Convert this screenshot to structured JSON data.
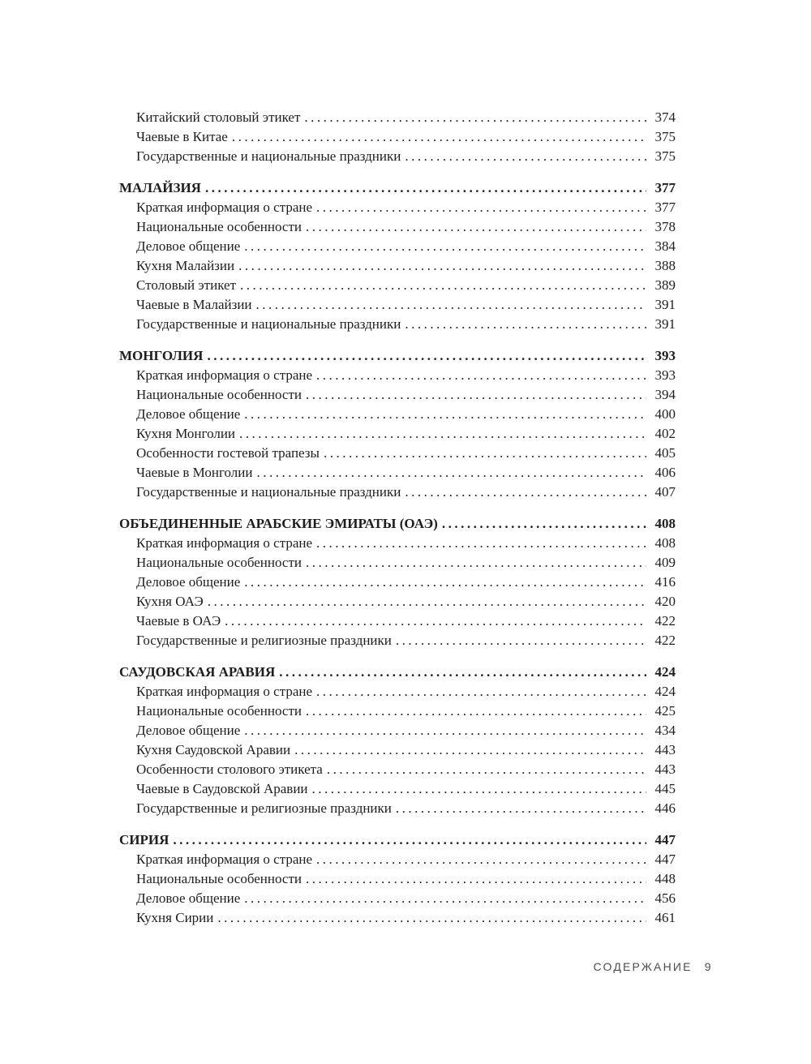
{
  "colors": {
    "background": "#ffffff",
    "text": "#1e1e1e",
    "footer_text": "#4d4d4d"
  },
  "footer": {
    "label": "СОДЕРЖАНИЕ",
    "page_number": "9"
  },
  "toc": {
    "rows": [
      {
        "type": "entry",
        "label": "Китайский столовый этикет",
        "page": "374"
      },
      {
        "type": "entry",
        "label": "Чаевые в Китае",
        "page": "375"
      },
      {
        "type": "entry",
        "label": "Государственные и национальные праздники",
        "page": "375"
      },
      {
        "type": "chapter",
        "label": "МАЛАЙЗИЯ",
        "page": "377"
      },
      {
        "type": "entry",
        "label": "Краткая информация о стране",
        "page": "377"
      },
      {
        "type": "entry",
        "label": "Национальные особенности",
        "page": "378"
      },
      {
        "type": "entry",
        "label": "Деловое общение",
        "page": "384"
      },
      {
        "type": "entry",
        "label": "Кухня Малайзии",
        "page": "388"
      },
      {
        "type": "entry",
        "label": "Столовый этикет",
        "page": "389"
      },
      {
        "type": "entry",
        "label": "Чаевые в Малайзии",
        "page": "391"
      },
      {
        "type": "entry",
        "label": "Государственные и национальные праздники",
        "page": "391"
      },
      {
        "type": "chapter",
        "label": "МОНГОЛИЯ",
        "page": "393"
      },
      {
        "type": "entry",
        "label": "Краткая информация о стране",
        "page": "393"
      },
      {
        "type": "entry",
        "label": "Национальные особенности",
        "page": "394"
      },
      {
        "type": "entry",
        "label": "Деловое общение",
        "page": "400"
      },
      {
        "type": "entry",
        "label": "Кухня Монголии",
        "page": "402"
      },
      {
        "type": "entry",
        "label": "Особенности гостевой трапезы",
        "page": "405"
      },
      {
        "type": "entry",
        "label": "Чаевые в Монголии",
        "page": "406"
      },
      {
        "type": "entry",
        "label": "Государственные и национальные праздники",
        "page": "407"
      },
      {
        "type": "chapter",
        "label": "ОБЪЕДИНЕННЫЕ АРАБСКИЕ ЭМИРАТЫ (ОАЭ)",
        "page": "408"
      },
      {
        "type": "entry",
        "label": "Краткая информация о стране",
        "page": "408"
      },
      {
        "type": "entry",
        "label": "Национальные особенности",
        "page": "409"
      },
      {
        "type": "entry",
        "label": "Деловое общение",
        "page": "416"
      },
      {
        "type": "entry",
        "label": "Кухня ОАЭ",
        "page": "420"
      },
      {
        "type": "entry",
        "label": "Чаевые в ОАЭ",
        "page": "422"
      },
      {
        "type": "entry",
        "label": "Государственные и религиозные праздники",
        "page": "422"
      },
      {
        "type": "chapter",
        "label": "САУДОВСКАЯ АРАВИЯ",
        "page": "424"
      },
      {
        "type": "entry",
        "label": "Краткая информация о стране",
        "page": "424"
      },
      {
        "type": "entry",
        "label": "Национальные особенности",
        "page": "425"
      },
      {
        "type": "entry",
        "label": "Деловое общение",
        "page": "434"
      },
      {
        "type": "entry",
        "label": "Кухня Саудовской Аравии",
        "page": "443"
      },
      {
        "type": "entry",
        "label": "Особенности столового этикета",
        "page": "443"
      },
      {
        "type": "entry",
        "label": "Чаевые в Саудовской Аравии",
        "page": "445"
      },
      {
        "type": "entry",
        "label": "Государственные и религиозные праздники",
        "page": "446"
      },
      {
        "type": "chapter",
        "label": "СИРИЯ",
        "page": "447"
      },
      {
        "type": "entry",
        "label": "Краткая информация о стране",
        "page": "447"
      },
      {
        "type": "entry",
        "label": "Национальные особенности",
        "page": "448"
      },
      {
        "type": "entry",
        "label": "Деловое общение",
        "page": "456"
      },
      {
        "type": "entry",
        "label": "Кухня Сирии",
        "page": "461"
      }
    ]
  }
}
